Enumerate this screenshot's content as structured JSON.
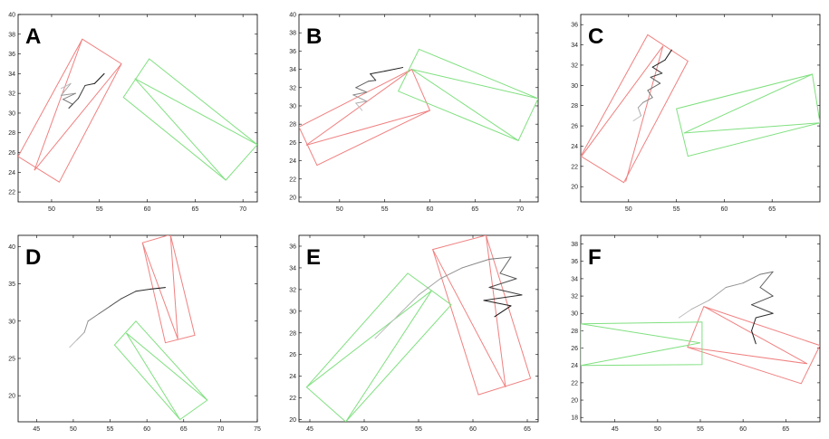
{
  "chart_data": [
    {
      "type": "line",
      "label": "A",
      "xlim": [
        46.5,
        71.5
      ],
      "ylim": [
        21,
        40
      ],
      "xticks": [
        50,
        55,
        60,
        65,
        70
      ],
      "yticks": [
        22,
        24,
        26,
        28,
        30,
        32,
        34,
        36,
        38,
        40
      ],
      "red_box": [
        [
          53.2,
          37.5
        ],
        [
          57.3,
          35.0
        ],
        [
          50.8,
          23.0
        ],
        [
          46.5,
          25.6
        ]
      ],
      "red_inner": [
        [
          48.2,
          24.2
        ],
        [
          53.2,
          37.5
        ],
        [
          48.2,
          24.2
        ],
        [
          57.3,
          35.0
        ]
      ],
      "green_box": [
        [
          60.2,
          35.5
        ],
        [
          71.5,
          26.8
        ],
        [
          68.2,
          23.2
        ],
        [
          57.5,
          31.6
        ]
      ],
      "green_inner": [
        [
          58.7,
          33.5
        ],
        [
          71.5,
          26.8
        ],
        [
          58.7,
          33.5
        ],
        [
          68.2,
          23.2
        ]
      ],
      "track": [
        [
          51.0,
          32.5
        ],
        [
          52.0,
          33.0
        ],
        [
          51.0,
          31.8
        ],
        [
          52.5,
          32.0
        ],
        [
          51.2,
          31.4
        ],
        [
          52.2,
          30.9
        ],
        [
          51.8,
          30.5
        ],
        [
          52.8,
          31.5
        ],
        [
          53.5,
          32.8
        ],
        [
          54.5,
          33.0
        ],
        [
          55.5,
          34.0
        ]
      ]
    },
    {
      "type": "line",
      "label": "B",
      "xlim": [
        45.5,
        72
      ],
      "ylim": [
        19.5,
        40
      ],
      "xticks": [
        50,
        55,
        60,
        65,
        70
      ],
      "yticks": [
        20,
        22,
        24,
        26,
        28,
        30,
        32,
        34,
        36,
        38,
        40
      ],
      "red_box": [
        [
          58.0,
          34.0
        ],
        [
          60.0,
          29.5
        ],
        [
          47.5,
          23.5
        ],
        [
          45.5,
          27.7
        ]
      ],
      "red_inner": [
        [
          46.3,
          25.7
        ],
        [
          58.0,
          34.0
        ],
        [
          46.3,
          25.7
        ],
        [
          60.0,
          29.5
        ]
      ],
      "green_box": [
        [
          58.8,
          36.2
        ],
        [
          72.0,
          30.8
        ],
        [
          69.8,
          26.2
        ],
        [
          56.5,
          31.6
        ]
      ],
      "green_inner": [
        [
          58.0,
          34.0
        ],
        [
          72.0,
          30.8
        ],
        [
          58.0,
          34.0
        ],
        [
          69.8,
          26.2
        ]
      ],
      "track": [
        [
          52.5,
          29.5
        ],
        [
          51.8,
          30.3
        ],
        [
          53.0,
          30.5
        ],
        [
          51.5,
          31.2
        ],
        [
          53.0,
          31.5
        ],
        [
          51.8,
          32.0
        ],
        [
          53.2,
          32.7
        ],
        [
          54.0,
          32.8
        ],
        [
          53.4,
          33.5
        ],
        [
          55.0,
          33.8
        ],
        [
          57.0,
          34.2
        ]
      ]
    },
    {
      "type": "line",
      "label": "C",
      "xlim": [
        45,
        70
      ],
      "ylim": [
        18.5,
        37
      ],
      "xticks": [
        50,
        55,
        60,
        65
      ],
      "yticks": [
        20,
        22,
        24,
        26,
        28,
        30,
        32,
        34,
        36
      ],
      "red_box": [
        [
          52.0,
          35.0
        ],
        [
          56.2,
          32.4
        ],
        [
          49.5,
          20.4
        ],
        [
          45.0,
          23.0
        ]
      ],
      "red_inner": [
        [
          45.0,
          22.9
        ],
        [
          53.6,
          33.9
        ],
        [
          49.7,
          20.5
        ],
        [
          53.6,
          33.9
        ]
      ],
      "green_box": [
        [
          69.2,
          31.1
        ],
        [
          70.0,
          26.3
        ],
        [
          56.2,
          23.0
        ],
        [
          55.0,
          27.7
        ]
      ],
      "green_inner": [
        [
          55.8,
          25.3
        ],
        [
          69.2,
          31.1
        ],
        [
          55.8,
          25.3
        ],
        [
          70.0,
          26.3
        ]
      ],
      "track": [
        [
          50.5,
          26.5
        ],
        [
          51.3,
          27.0
        ],
        [
          51.0,
          27.8
        ],
        [
          51.5,
          28.3
        ],
        [
          52.5,
          28.8
        ],
        [
          52.0,
          29.5
        ],
        [
          53.3,
          30.2
        ],
        [
          52.3,
          30.8
        ],
        [
          53.5,
          31.2
        ],
        [
          52.5,
          31.8
        ],
        [
          53.8,
          32.5
        ],
        [
          54.5,
          33.5
        ]
      ]
    },
    {
      "type": "line",
      "label": "D",
      "xlim": [
        42.5,
        75
      ],
      "ylim": [
        16.5,
        41.5
      ],
      "xticks": [
        45,
        50,
        55,
        60,
        65,
        70,
        75
      ],
      "yticks": [
        20,
        25,
        30,
        35,
        40
      ],
      "red_box": [
        [
          59.4,
          40.5
        ],
        [
          63.2,
          41.6
        ],
        [
          66.5,
          28.1
        ],
        [
          62.5,
          27.1
        ]
      ],
      "red_inner": [
        [
          59.4,
          40.5
        ],
        [
          64.2,
          27.6
        ],
        [
          63.2,
          41.6
        ],
        [
          64.2,
          27.6
        ]
      ],
      "green_box": [
        [
          58.5,
          30.0
        ],
        [
          68.2,
          19.4
        ],
        [
          64.5,
          16.8
        ],
        [
          55.6,
          26.8
        ]
      ],
      "green_inner": [
        [
          57.2,
          28.4
        ],
        [
          68.2,
          19.4
        ],
        [
          57.2,
          28.4
        ],
        [
          64.5,
          16.8
        ]
      ],
      "track": [
        [
          49.5,
          26.5
        ],
        [
          50.5,
          27.5
        ],
        [
          51.5,
          28.5
        ],
        [
          52.0,
          30.0
        ],
        [
          53.5,
          31.0
        ],
        [
          55.0,
          32.0
        ],
        [
          56.5,
          33.0
        ],
        [
          58.5,
          34.0
        ],
        [
          60.5,
          34.3
        ],
        [
          62.5,
          34.5
        ]
      ]
    },
    {
      "type": "line",
      "label": "E",
      "xlim": [
        44,
        66
      ],
      "ylim": [
        19.8,
        37
      ],
      "xticks": [
        45,
        50,
        55,
        60,
        65
      ],
      "yticks": [
        20,
        22,
        24,
        26,
        28,
        30,
        32,
        34,
        36
      ],
      "red_box": [
        [
          56.3,
          35.7
        ],
        [
          61.2,
          37.0
        ],
        [
          65.3,
          23.8
        ],
        [
          60.5,
          22.3
        ]
      ],
      "red_inner": [
        [
          56.3,
          35.7
        ],
        [
          63.0,
          23.0
        ],
        [
          61.2,
          37.0
        ],
        [
          63.0,
          23.0
        ]
      ],
      "green_box": [
        [
          54.0,
          33.5
        ],
        [
          58.0,
          30.6
        ],
        [
          48.3,
          19.8
        ],
        [
          44.7,
          23.0
        ]
      ],
      "green_inner": [
        [
          44.7,
          23.0
        ],
        [
          56.2,
          31.9
        ],
        [
          48.3,
          19.8
        ],
        [
          56.2,
          31.9
        ]
      ],
      "track": [
        [
          51.0,
          27.5
        ],
        [
          53.0,
          29.5
        ],
        [
          55.0,
          31.5
        ],
        [
          57.0,
          33.0
        ],
        [
          59.0,
          34.0
        ],
        [
          61.5,
          34.8
        ],
        [
          63.5,
          35.0
        ],
        [
          62.5,
          33.5
        ],
        [
          64.0,
          33.0
        ],
        [
          61.5,
          32.2
        ],
        [
          64.5,
          31.5
        ],
        [
          61.0,
          31.0
        ],
        [
          63.5,
          30.5
        ],
        [
          62.0,
          29.5
        ]
      ]
    },
    {
      "type": "line",
      "label": "F",
      "xlim": [
        41,
        69
      ],
      "ylim": [
        17.5,
        39
      ],
      "xticks": [
        45,
        50,
        55,
        60,
        65
      ],
      "yticks": [
        18,
        20,
        22,
        24,
        26,
        28,
        30,
        32,
        34,
        36,
        38
      ],
      "red_box": [
        [
          55.4,
          30.8
        ],
        [
          69.0,
          26.3
        ],
        [
          66.8,
          21.9
        ],
        [
          53.5,
          26.1
        ]
      ],
      "red_inner": [
        [
          53.5,
          26.1
        ],
        [
          67.5,
          24.2
        ],
        [
          55.4,
          30.8
        ],
        [
          67.5,
          24.2
        ]
      ],
      "green_box": [
        [
          41.0,
          28.8
        ],
        [
          55.2,
          29.0
        ],
        [
          55.2,
          24.1
        ],
        [
          41.0,
          24.0
        ]
      ],
      "green_inner": [
        [
          41.0,
          28.8
        ],
        [
          55.0,
          26.6
        ],
        [
          41.0,
          24.0
        ],
        [
          55.0,
          26.6
        ]
      ],
      "track": [
        [
          52.5,
          29.5
        ],
        [
          54.0,
          30.5
        ],
        [
          56.0,
          31.5
        ],
        [
          58.0,
          33.0
        ],
        [
          60.0,
          33.5
        ],
        [
          62.0,
          34.5
        ],
        [
          63.5,
          34.8
        ],
        [
          62.0,
          33.0
        ],
        [
          63.5,
          32.0
        ],
        [
          61.0,
          31.0
        ],
        [
          63.5,
          30.0
        ],
        [
          61.5,
          29.5
        ],
        [
          61.0,
          28.0
        ],
        [
          61.5,
          26.5
        ]
      ]
    }
  ]
}
